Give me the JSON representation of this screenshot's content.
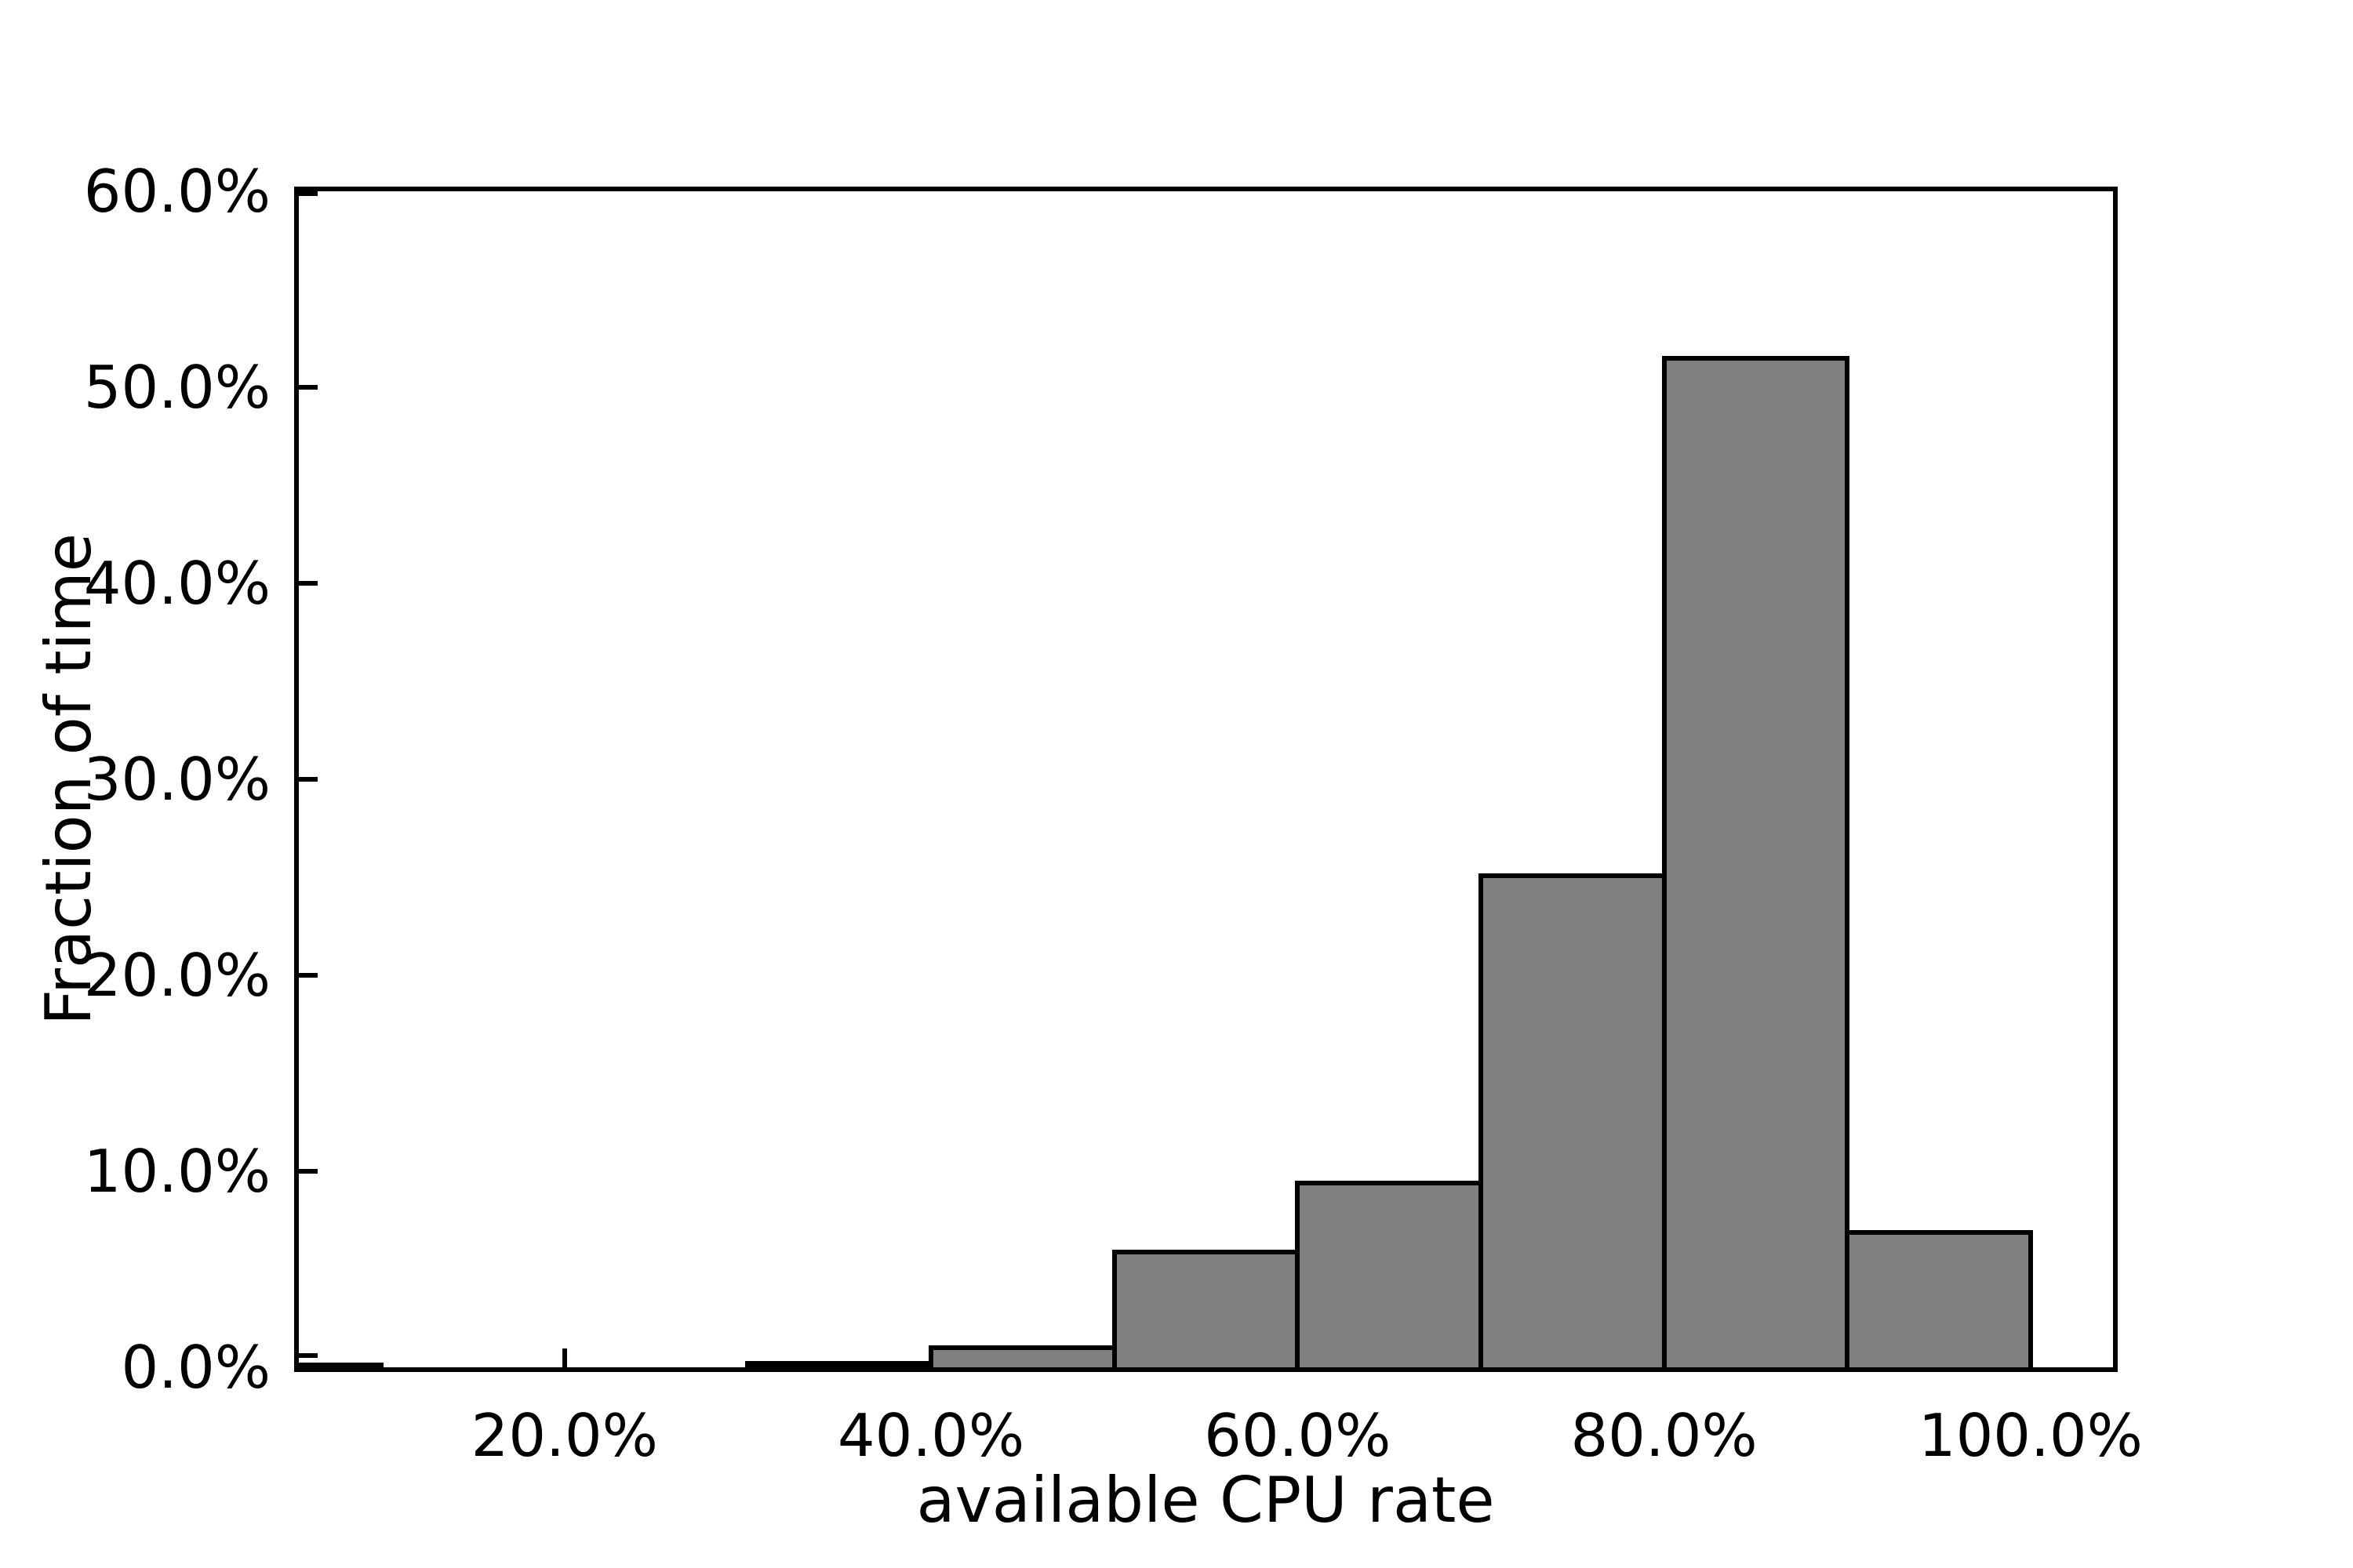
{
  "figure": {
    "background": "#ffffff",
    "text_color": "#000000"
  },
  "chart_data": {
    "type": "bar",
    "subtype": "histogram",
    "title": "",
    "xlabel": "available CPU rate",
    "ylabel": "Fraction of time",
    "bin_edges_percent": [
      0,
      10,
      20,
      30,
      40,
      50,
      60,
      70,
      80,
      90,
      100
    ],
    "values_percent": [
      0.15,
      0,
      0,
      0.25,
      1.0,
      5.9,
      9.4,
      25.1,
      51.5,
      6.9
    ],
    "xlim": [
      5.5,
      104.5
    ],
    "ylim": [
      0,
      60
    ],
    "x_ticks": [
      {
        "value": 20,
        "label": "20.0%"
      },
      {
        "value": 40,
        "label": "40.0%"
      },
      {
        "value": 60,
        "label": "60.0%"
      },
      {
        "value": 80,
        "label": "80.0%"
      },
      {
        "value": 100,
        "label": "100.0%"
      }
    ],
    "y_ticks": [
      {
        "value": 0,
        "label": "0.0%"
      },
      {
        "value": 10,
        "label": "10.0%"
      },
      {
        "value": 20,
        "label": "20.0%"
      },
      {
        "value": 30,
        "label": "30.0%"
      },
      {
        "value": 40,
        "label": "40.0%"
      },
      {
        "value": 50,
        "label": "50.0%"
      },
      {
        "value": 60,
        "label": "60.0%"
      }
    ],
    "bar_fill": "#808080",
    "bar_edge": "#000000",
    "grid": false,
    "legend": null,
    "tick_direction": "in"
  }
}
